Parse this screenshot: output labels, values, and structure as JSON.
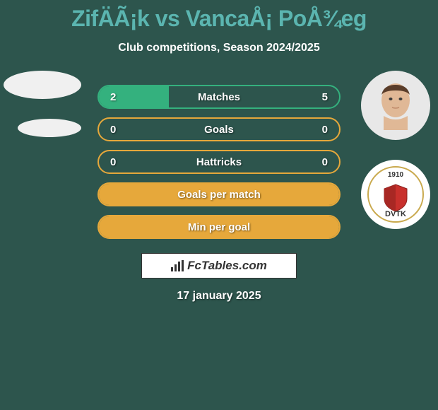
{
  "header": {
    "title": "ZifÄÃ¡k vs VancaÅ¡ PoÅ¾eg",
    "subtitle": "Club competitions, Season 2024/2025",
    "title_color": "#5bb5b0",
    "subtitle_color": "#ffffff"
  },
  "stats": [
    {
      "label": "Matches",
      "left_value": "2",
      "right_value": "5",
      "border_color": "#34b17e",
      "fill_color": "#34b17e",
      "fill_left_pct": 29,
      "show_values": true
    },
    {
      "label": "Goals",
      "left_value": "0",
      "right_value": "0",
      "border_color": "#e6a83b",
      "fill_color": "#e6a83b",
      "fill_left_pct": 0,
      "show_values": true
    },
    {
      "label": "Hattricks",
      "left_value": "0",
      "right_value": "0",
      "border_color": "#e6a83b",
      "fill_color": "#e6a83b",
      "fill_left_pct": 0,
      "show_values": true
    },
    {
      "label": "Goals per match",
      "left_value": "",
      "right_value": "",
      "border_color": "#e6a83b",
      "fill_color": "#e6a83b",
      "fill_left_pct": 100,
      "show_values": false
    },
    {
      "label": "Min per goal",
      "left_value": "",
      "right_value": "",
      "border_color": "#e6a83b",
      "fill_color": "#e6a83b",
      "fill_left_pct": 100,
      "show_values": false
    }
  ],
  "watermark": {
    "text": "FcTables.com"
  },
  "date": "17 january 2025",
  "right_club": {
    "year": "1910",
    "acronym": "DVTK",
    "shield_fill": "#c8302c",
    "ring_color": "#c9a94d"
  },
  "colors": {
    "background": "#2d554d",
    "avatar_bg": "#f0f0f0",
    "circle_bg": "#e8e8e8"
  }
}
